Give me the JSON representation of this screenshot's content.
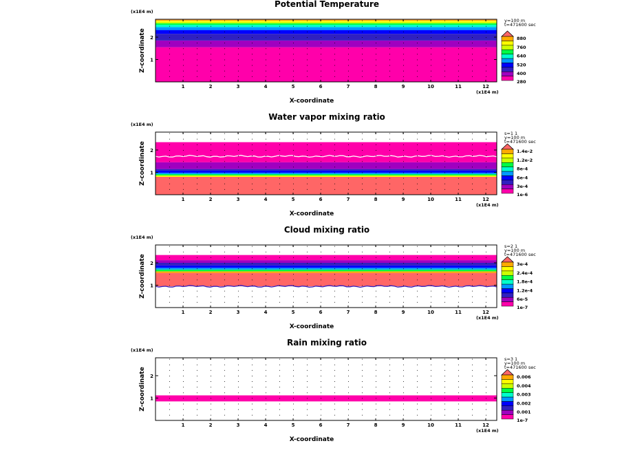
{
  "chart_data": [
    {
      "type": "heatmap",
      "title": "Potential Temperature",
      "xlabel": "X-coordinate",
      "ylabel": "Z-coordinate",
      "x_unit": "(x1E4 m)",
      "z_unit": "(x1E4 m)",
      "xlim": [
        0,
        12.4
      ],
      "zlim": [
        0,
        2.8
      ],
      "x_ticks": [
        "1",
        "2",
        "3",
        "4",
        "5",
        "6",
        "7",
        "8",
        "9",
        "10",
        "11",
        "12"
      ],
      "z_ticks": [
        "1",
        "2"
      ],
      "info": [
        "y=100 m",
        "t=471600 sec"
      ],
      "legend_labels": [
        "880",
        "760",
        "640",
        "520",
        "400",
        "280"
      ],
      "legend_colors": [
        "#ff00aa",
        "#a000c0",
        "#3020c0",
        "#0000ff",
        "#0099ff",
        "#00ffcc",
        "#00ff44",
        "#ccff00",
        "#ffff00",
        "#ffaa00",
        "#ff6666"
      ],
      "layers": [
        {
          "z0": 0,
          "z1": 1.55,
          "color": "#ff00aa"
        },
        {
          "z0": 1.55,
          "z1": 1.85,
          "color": "#a000c0"
        },
        {
          "z0": 1.85,
          "z1": 2.15,
          "color": "#3020c0"
        },
        {
          "z0": 2.15,
          "z1": 2.32,
          "color": "#0000ff"
        },
        {
          "z0": 2.32,
          "z1": 2.45,
          "color": "#0099ff"
        },
        {
          "z0": 2.45,
          "z1": 2.55,
          "color": "#00ffcc"
        },
        {
          "z0": 2.55,
          "z1": 2.62,
          "color": "#00ff44"
        },
        {
          "z0": 2.62,
          "z1": 2.68,
          "color": "#ccff00"
        },
        {
          "z0": 2.68,
          "z1": 2.73,
          "color": "#ffff00"
        },
        {
          "z0": 2.73,
          "z1": 2.78,
          "color": "#ffaa00"
        },
        {
          "z0": 2.78,
          "z1": 2.8,
          "color": "#ff6666"
        }
      ],
      "wavy_lines": []
    },
    {
      "type": "heatmap",
      "title": "Water vapor mixing ratio",
      "xlabel": "X-coordinate",
      "ylabel": "Z-coordinate",
      "x_unit": "(x1E4 m)",
      "z_unit": "(x1E4 m)",
      "xlim": [
        0,
        12.4
      ],
      "zlim": [
        0,
        2.8
      ],
      "x_ticks": [
        "1",
        "2",
        "3",
        "4",
        "5",
        "6",
        "7",
        "8",
        "9",
        "10",
        "11",
        "12"
      ],
      "z_ticks": [
        "1",
        "2"
      ],
      "info": [
        "s=1 1",
        "y=100 m",
        "t=471600 sec"
      ],
      "legend_labels": [
        "1.4e-2",
        "1.2e-2",
        "8e-4",
        "6e-4",
        "3e-4",
        "1e-6"
      ],
      "legend_colors": [
        "#ff00aa",
        "#a000c0",
        "#3020c0",
        "#0000ff",
        "#0099ff",
        "#00ffcc",
        "#00ff44",
        "#ccff00",
        "#ffff00",
        "#ffaa00",
        "#ff6666"
      ],
      "layers": [
        {
          "z0": 0,
          "z1": 0.8,
          "color": "#ff6666"
        },
        {
          "z0": 0.8,
          "z1": 0.86,
          "color": "#ffff00"
        },
        {
          "z0": 0.86,
          "z1": 0.92,
          "color": "#00ff44"
        },
        {
          "z0": 0.92,
          "z1": 0.98,
          "color": "#0099ff"
        },
        {
          "z0": 0.98,
          "z1": 1.08,
          "color": "#0000ff"
        },
        {
          "z0": 1.08,
          "z1": 1.15,
          "color": "#3020c0"
        },
        {
          "z0": 1.15,
          "z1": 1.45,
          "color": "#a000c0"
        },
        {
          "z0": 1.45,
          "z1": 2.35,
          "color": "#ff00aa"
        }
      ],
      "wavy_lines": [
        {
          "z": 1.72,
          "color": "#ffffff"
        }
      ]
    },
    {
      "type": "heatmap",
      "title": "Cloud mixing ratio",
      "xlabel": "X-coordinate",
      "ylabel": "Z-coordinate",
      "x_unit": "(x1E4 m)",
      "z_unit": "(x1E4 m)",
      "xlim": [
        0,
        12.4
      ],
      "zlim": [
        0,
        2.8
      ],
      "x_ticks": [
        "1",
        "2",
        "3",
        "4",
        "5",
        "6",
        "7",
        "8",
        "9",
        "10",
        "11",
        "12"
      ],
      "z_ticks": [
        "1",
        "2"
      ],
      "info": [
        "s=2 1",
        "y=100 m",
        "t=471600 sec"
      ],
      "legend_labels": [
        "3e-4",
        "2.4e-4",
        "1.8e-4",
        "1.2e-4",
        "6e-5",
        "1e-7"
      ],
      "legend_colors": [
        "#ff00aa",
        "#a000c0",
        "#3020c0",
        "#0000ff",
        "#0099ff",
        "#00ffcc",
        "#00ff44",
        "#ccff00",
        "#ffff00",
        "#ffaa00",
        "#ff6666"
      ],
      "layers": [
        {
          "z0": 0.95,
          "z1": 1.55,
          "color": "#ff6666"
        },
        {
          "z0": 1.55,
          "z1": 1.62,
          "color": "#ffaa00"
        },
        {
          "z0": 1.62,
          "z1": 1.7,
          "color": "#00ff44"
        },
        {
          "z0": 1.7,
          "z1": 1.78,
          "color": "#0099ff"
        },
        {
          "z0": 1.78,
          "z1": 1.88,
          "color": "#0000ff"
        },
        {
          "z0": 1.88,
          "z1": 2.0,
          "color": "#3020c0"
        },
        {
          "z0": 2.0,
          "z1": 2.12,
          "color": "#a000c0"
        },
        {
          "z0": 2.12,
          "z1": 2.35,
          "color": "#ff00aa"
        }
      ],
      "wavy_lines": [
        {
          "z": 0.95,
          "color": "#3020c0"
        }
      ]
    },
    {
      "type": "heatmap",
      "title": "Rain mixing ratio",
      "xlabel": "X-coordinate",
      "ylabel": "Z-coordinate",
      "x_unit": "(x1E4 m)",
      "z_unit": "(x1E4 m)",
      "xlim": [
        0,
        12.4
      ],
      "zlim": [
        0,
        2.8
      ],
      "x_ticks": [
        "1",
        "2",
        "3",
        "4",
        "5",
        "6",
        "7",
        "8",
        "9",
        "10",
        "11",
        "12"
      ],
      "z_ticks": [
        "1",
        "2"
      ],
      "info": [
        "s=3 1",
        "y=100 m",
        "t=471600 sec"
      ],
      "legend_labels": [
        "0.006",
        "0.004",
        "0.003",
        "0.002",
        "0.001",
        "1e-7"
      ],
      "legend_colors": [
        "#ff00aa",
        "#a000c0",
        "#3020c0",
        "#0000ff",
        "#0099ff",
        "#00ffcc",
        "#00ff44",
        "#ccff00",
        "#ffff00",
        "#ffaa00",
        "#ff6666"
      ],
      "layers": [
        {
          "z0": 0.85,
          "z1": 1.12,
          "color": "#ff00aa"
        }
      ],
      "wavy_lines": []
    }
  ]
}
